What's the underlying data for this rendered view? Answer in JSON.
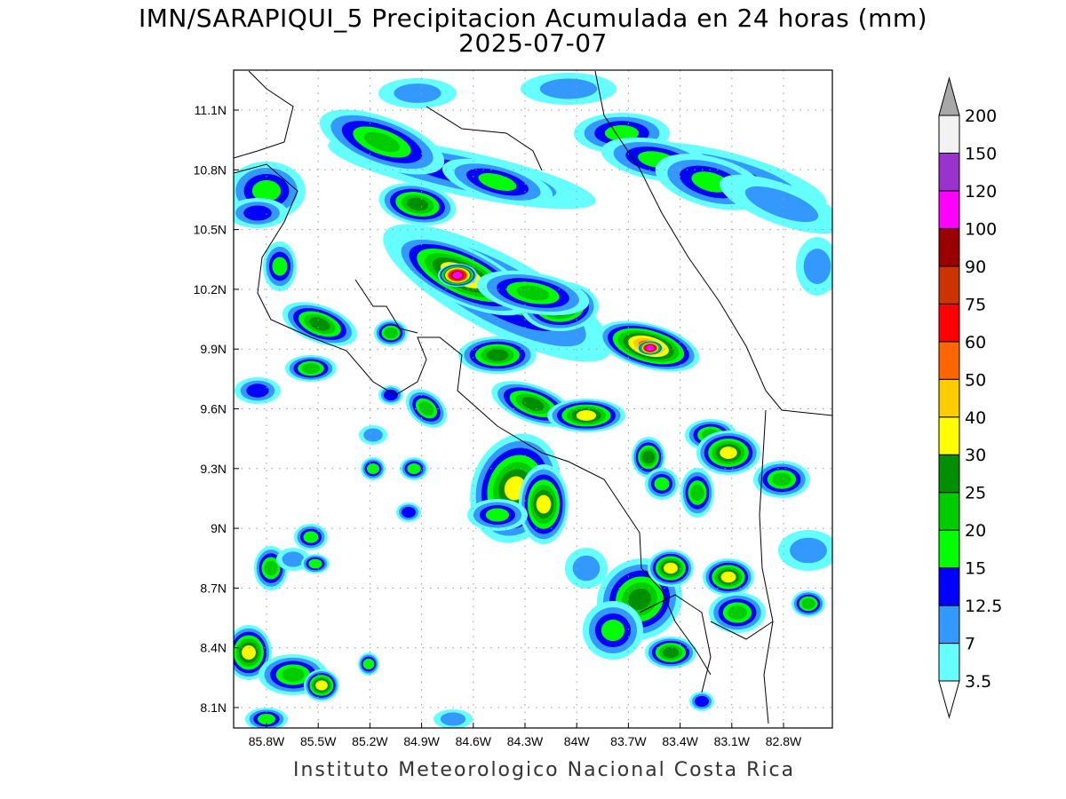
{
  "title": {
    "line1": "IMN/SARAPIQUI_5 Precipitacion Acumulada en 24 horas (mm)",
    "line2": "2025-07-07"
  },
  "footer": "Instituto Meteorologico Nacional Costa Rica",
  "map": {
    "lon_ticks": [
      "85.8W",
      "85.5W",
      "85.2W",
      "84.9W",
      "84.6W",
      "84.3W",
      "84W",
      "83.7W",
      "83.4W",
      "83.1W",
      "82.8W"
    ],
    "lat_ticks": [
      "11.1N",
      "10.8N",
      "10.5N",
      "10.2N",
      "9.9N",
      "9.6N",
      "9.3N",
      "9N",
      "8.7N",
      "8.4N",
      "8.1N"
    ],
    "grid": true
  },
  "colorbar": {
    "labels": [
      "3.5",
      "7",
      "12.5",
      "15",
      "20",
      "25",
      "30",
      "40",
      "50",
      "60",
      "75",
      "90",
      "100",
      "120",
      "150",
      "200"
    ],
    "colors": [
      "#66ffff",
      "#3399ff",
      "#0000ff",
      "#00ff00",
      "#00cc00",
      "#008f00",
      "#ffff00",
      "#ffcc00",
      "#ff6600",
      "#ff0000",
      "#cc3300",
      "#990000",
      "#ff00ff",
      "#9933cc",
      "#f2f2f2"
    ],
    "over_color": "#a8a8a8",
    "under_color": "#ffffff"
  }
}
